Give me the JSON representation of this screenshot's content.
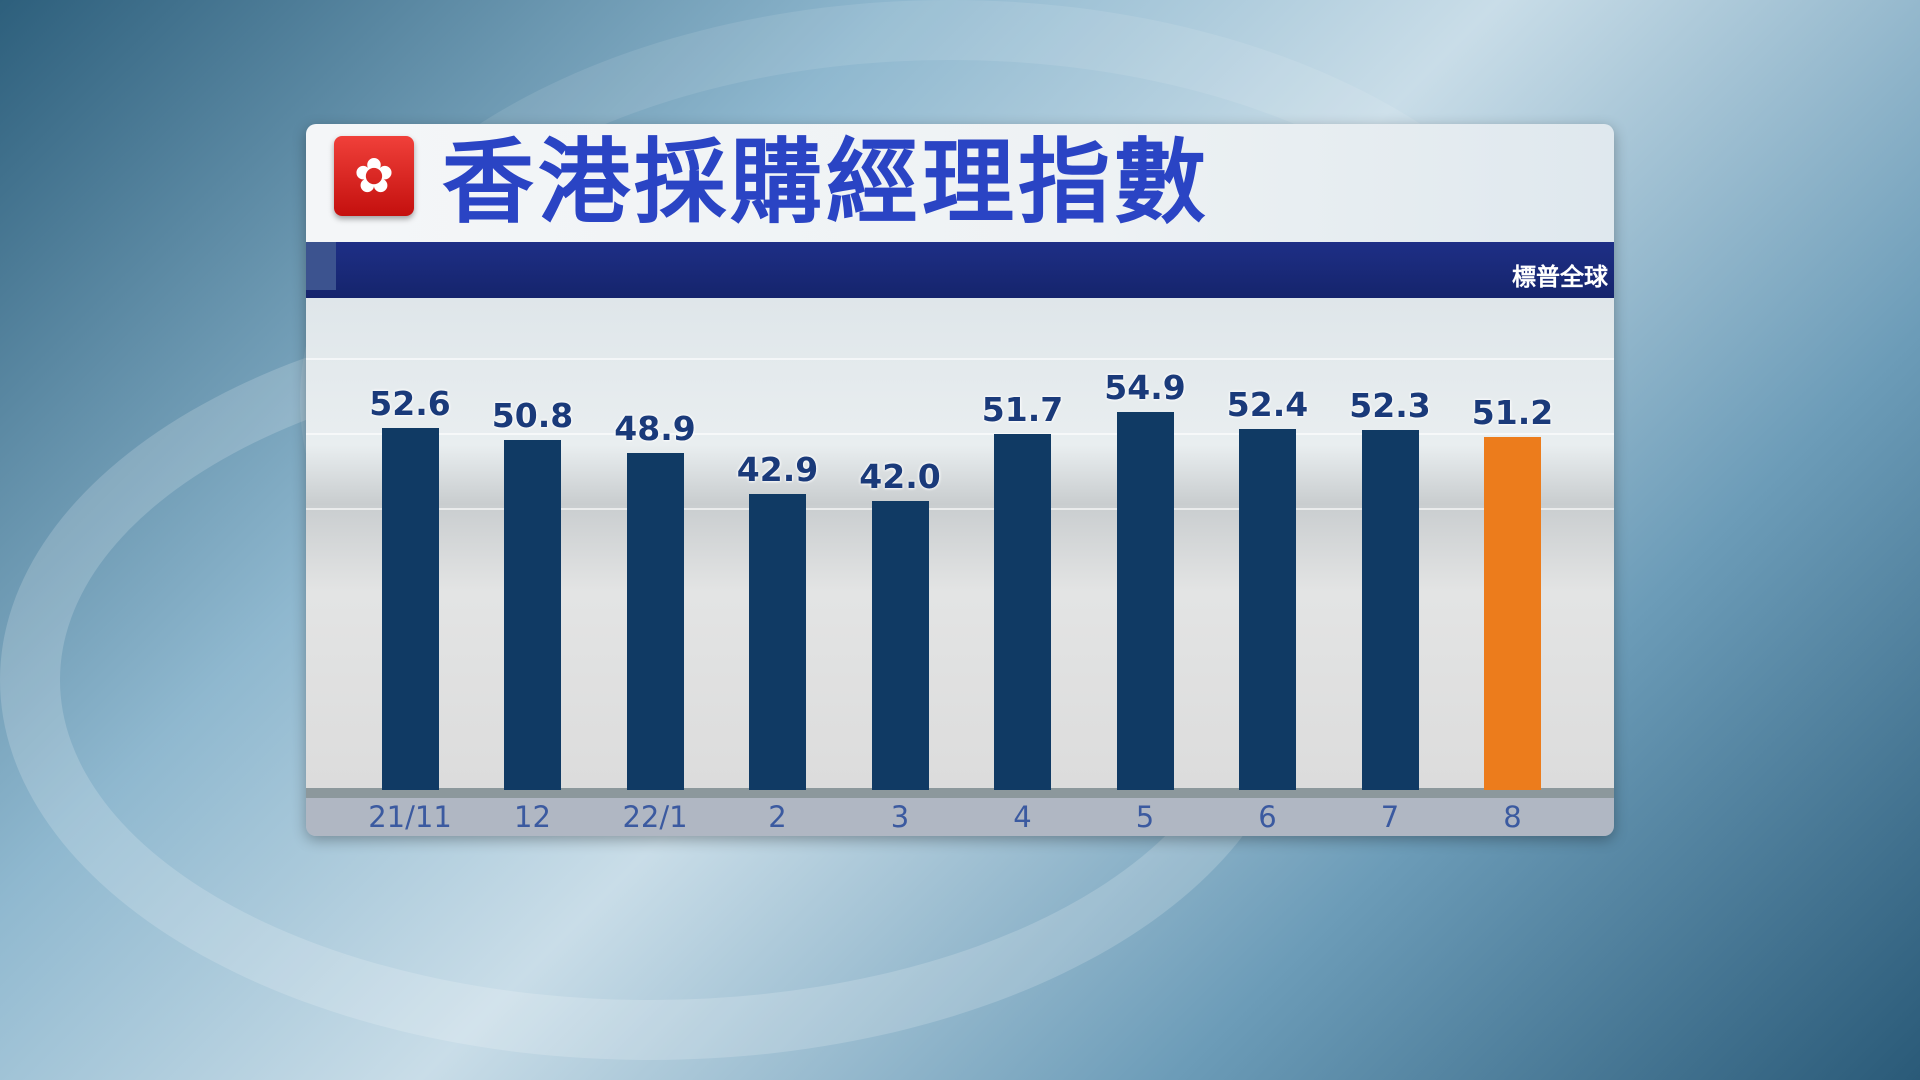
{
  "title": "香港採購經理指數",
  "source": "標普全球",
  "flag_icon": "hong-kong-flag-icon",
  "chart_data": {
    "type": "bar",
    "title": "香港採購經理指數",
    "categories": [
      "21/11",
      "12",
      "22/1",
      "2",
      "3",
      "4",
      "5",
      "6",
      "7",
      "8"
    ],
    "values": [
      52.6,
      50.8,
      48.9,
      42.9,
      42.0,
      51.7,
      54.9,
      52.4,
      52.3,
      51.2
    ],
    "value_labels": [
      "52.6",
      "50.8",
      "48.9",
      "42.9",
      "42.0",
      "51.7",
      "54.9",
      "52.4",
      "52.3",
      "51.2"
    ],
    "ylim": [
      0,
      60
    ],
    "grid": false,
    "colors": {
      "default": "#103a64",
      "highlight": "#ec7c1c"
    },
    "highlight_index": 9
  }
}
